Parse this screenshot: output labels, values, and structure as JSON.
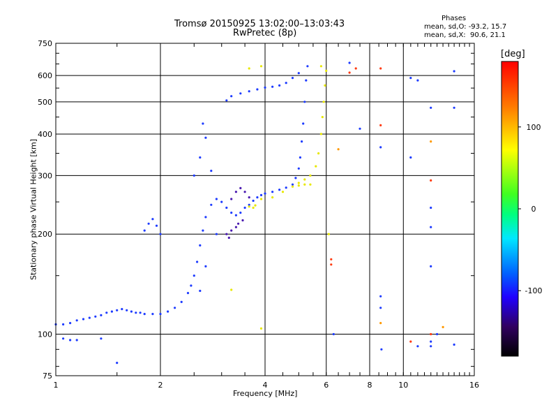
{
  "header": {
    "title_line1": "Tromsø 20150925 13:02:00–13:03:43",
    "title_line2": "RwPretec (8p)",
    "stats_title": "Phases",
    "stats_line1": "mean, sd,O: -93.2, 15.7",
    "stats_line2": "mean, sd,X:  90.6, 21.1"
  },
  "colorbar": {
    "label": "[deg]",
    "ticks": [
      "100",
      "0",
      "-100"
    ],
    "tick_values": [
      100,
      0,
      -100
    ],
    "range": [
      -180,
      180
    ]
  },
  "colors": {
    "o_mode": "#1e3cff",
    "o_mode_dark": "#3a1aa0",
    "x_mode": "#f0f000",
    "grid": "#000000"
  },
  "chart_data": {
    "type": "scatter",
    "title": "Tromsø 20150925 13:02:00–13:03:43",
    "subtitle": "RwPretec (8p)",
    "xlabel": "Frequency [MHz]",
    "ylabel": "Stationary phase Virtual Height [km]",
    "xscale": "log",
    "yscale": "log",
    "xlim": [
      1,
      16
    ],
    "ylim": [
      75,
      750
    ],
    "x_ticks": [
      1,
      2,
      4,
      6,
      8,
      10,
      16
    ],
    "x_tick_labels": [
      "1",
      "2",
      "4",
      "6",
      "8",
      "10",
      "16"
    ],
    "y_ticks": [
      75,
      100,
      200,
      300,
      400,
      500,
      600,
      750
    ],
    "y_tick_labels": [
      "75",
      "100",
      "200",
      "300",
      "400",
      "500",
      "600",
      "750"
    ],
    "grid": true,
    "color_scale": "phase [deg], -180 to 180",
    "series": [
      {
        "points": [
          [
            1.0,
            107
          ],
          [
            1.05,
            107
          ],
          [
            1.1,
            108
          ],
          [
            1.15,
            110
          ],
          [
            1.2,
            111
          ],
          [
            1.25,
            112
          ],
          [
            1.3,
            113
          ],
          [
            1.35,
            114
          ],
          [
            1.4,
            116
          ],
          [
            1.45,
            117
          ],
          [
            1.5,
            118
          ],
          [
            1.55,
            119
          ],
          [
            1.6,
            118
          ],
          [
            1.65,
            117
          ],
          [
            1.7,
            116
          ],
          [
            1.75,
            116
          ],
          [
            1.8,
            115
          ],
          [
            1.9,
            115
          ],
          [
            2.0,
            115
          ],
          [
            2.1,
            117
          ],
          [
            2.2,
            120
          ],
          [
            2.3,
            125
          ],
          [
            2.4,
            133
          ],
          [
            2.45,
            140
          ],
          [
            2.5,
            150
          ],
          [
            2.55,
            165
          ],
          [
            2.6,
            185
          ],
          [
            2.65,
            205
          ],
          [
            2.7,
            225
          ],
          [
            2.8,
            245
          ],
          [
            2.9,
            255
          ],
          [
            3.0,
            250
          ],
          [
            3.1,
            240
          ],
          [
            3.2,
            232
          ],
          [
            3.3,
            228
          ],
          [
            3.4,
            232
          ],
          [
            3.5,
            240
          ],
          [
            3.6,
            245
          ],
          [
            3.7,
            252
          ],
          [
            3.8,
            258
          ],
          [
            3.9,
            262
          ],
          [
            4.0,
            265
          ],
          [
            4.2,
            268
          ],
          [
            4.4,
            272
          ],
          [
            4.6,
            276
          ],
          [
            4.8,
            282
          ],
          [
            4.9,
            295
          ],
          [
            5.0,
            315
          ],
          [
            5.05,
            340
          ],
          [
            5.1,
            380
          ],
          [
            5.15,
            430
          ],
          [
            5.2,
            500
          ],
          [
            5.25,
            580
          ],
          [
            5.3,
            640
          ],
          [
            5.0,
            610
          ],
          [
            4.8,
            590
          ],
          [
            4.6,
            570
          ],
          [
            4.4,
            560
          ],
          [
            4.2,
            555
          ],
          [
            4.0,
            552
          ],
          [
            3.8,
            545
          ],
          [
            3.6,
            538
          ],
          [
            3.4,
            530
          ],
          [
            3.2,
            520
          ],
          [
            3.1,
            505
          ],
          [
            1.05,
            97
          ],
          [
            1.1,
            96
          ],
          [
            1.15,
            96
          ],
          [
            1.35,
            97
          ],
          [
            1.5,
            82
          ],
          [
            1.8,
            205
          ],
          [
            1.85,
            215
          ],
          [
            1.9,
            222
          ],
          [
            1.95,
            212
          ],
          [
            2.0,
            200
          ],
          [
            2.5,
            300
          ],
          [
            2.6,
            340
          ],
          [
            2.7,
            390
          ],
          [
            2.65,
            430
          ],
          [
            2.8,
            310
          ],
          [
            2.9,
            200
          ],
          [
            2.7,
            160
          ],
          [
            2.6,
            135
          ]
        ]
      },
      {
        "points": [
          [
            3.9,
            255
          ],
          [
            4.2,
            258
          ],
          [
            4.5,
            268
          ],
          [
            4.8,
            278
          ],
          [
            5.0,
            285
          ],
          [
            5.2,
            292
          ],
          [
            5.4,
            300
          ],
          [
            5.6,
            320
          ],
          [
            5.7,
            350
          ],
          [
            5.8,
            400
          ],
          [
            5.85,
            450
          ],
          [
            5.9,
            500
          ],
          [
            5.95,
            560
          ],
          [
            6.0,
            620
          ],
          [
            5.4,
            282
          ],
          [
            5.2,
            282
          ],
          [
            5.0,
            280
          ],
          [
            3.6,
            242
          ],
          [
            3.7,
            240
          ],
          [
            3.75,
            244
          ],
          [
            3.2,
            136
          ],
          [
            3.9,
            104
          ],
          [
            3.9,
            640
          ],
          [
            3.6,
            630
          ],
          [
            5.8,
            640
          ],
          [
            6.1,
            200
          ]
        ]
      },
      {
        "points": [
          [
            3.2,
            255
          ],
          [
            3.3,
            268
          ],
          [
            3.4,
            275
          ],
          [
            3.5,
            268
          ],
          [
            3.6,
            258
          ],
          [
            3.45,
            220
          ],
          [
            3.3,
            210
          ],
          [
            3.2,
            205
          ],
          [
            3.1,
            200
          ],
          [
            3.35,
            215
          ],
          [
            3.15,
            195
          ]
        ]
      },
      {
        "points": [
          [
            6.3,
            100
          ],
          [
            6.5,
            360
          ],
          [
            7.0,
            655
          ],
          [
            7.5,
            415
          ],
          [
            8.6,
            365
          ],
          [
            8.6,
            130
          ],
          [
            8.6,
            120
          ],
          [
            8.6,
            108
          ],
          [
            8.65,
            90
          ],
          [
            10.5,
            340
          ],
          [
            10.5,
            590
          ],
          [
            11.0,
            580
          ],
          [
            12.0,
            480
          ],
          [
            12.0,
            380
          ],
          [
            12.0,
            240
          ],
          [
            12.0,
            210
          ],
          [
            12.0,
            160
          ],
          [
            12.0,
            95
          ],
          [
            12.0,
            92
          ],
          [
            13.0,
            105
          ],
          [
            14.0,
            93
          ],
          [
            14.0,
            480
          ],
          [
            14.0,
            618
          ],
          [
            12.5,
            100
          ],
          [
            11.0,
            92
          ]
        ]
      },
      {
        "points": [
          [
            6.2,
            162
          ],
          [
            6.2,
            168
          ],
          [
            7.0,
            612
          ],
          [
            8.6,
            425
          ],
          [
            8.6,
            630
          ],
          [
            10.5,
            95
          ],
          [
            12.0,
            290
          ],
          [
            12.0,
            100
          ],
          [
            7.3,
            630
          ]
        ]
      }
    ]
  },
  "footer": {
    "copyright": ""
  }
}
